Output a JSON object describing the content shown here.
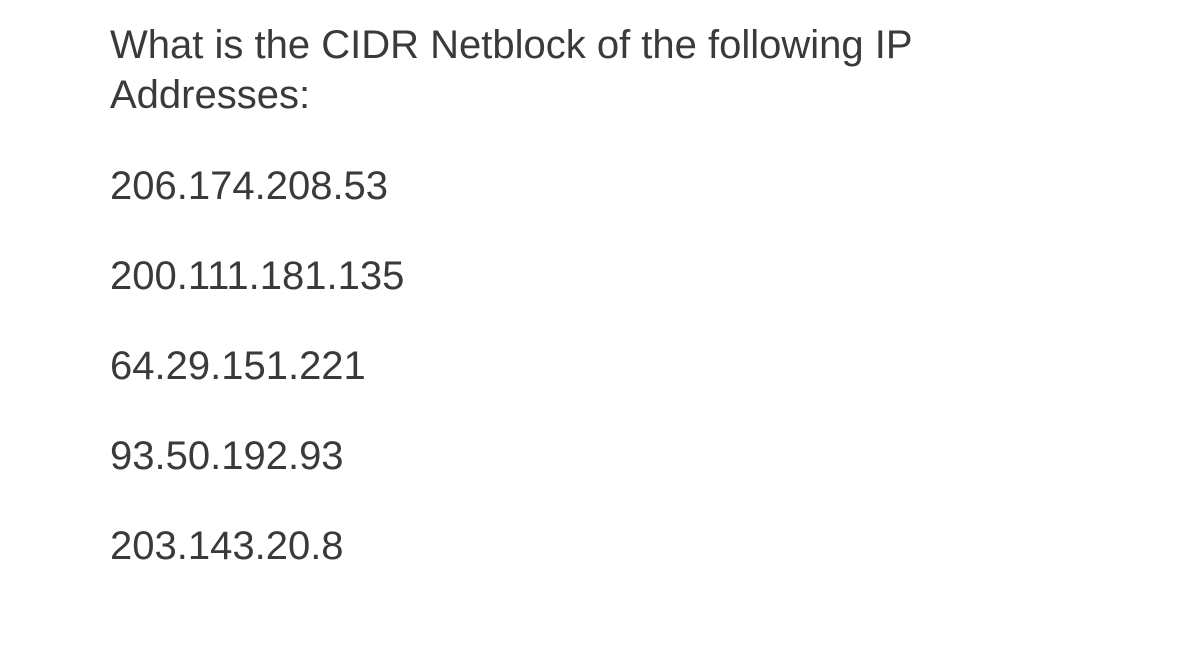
{
  "document": {
    "question": "What is the CIDR Netblock of the following IP Addresses:",
    "ip_addresses": [
      "206.174.208.53",
      "200.111.181.135",
      "64.29.151.221",
      "93.50.192.93",
      "203.143.20.8"
    ],
    "text_color": "#3a3a3a",
    "background_color": "#ffffff",
    "font_size": 40
  }
}
